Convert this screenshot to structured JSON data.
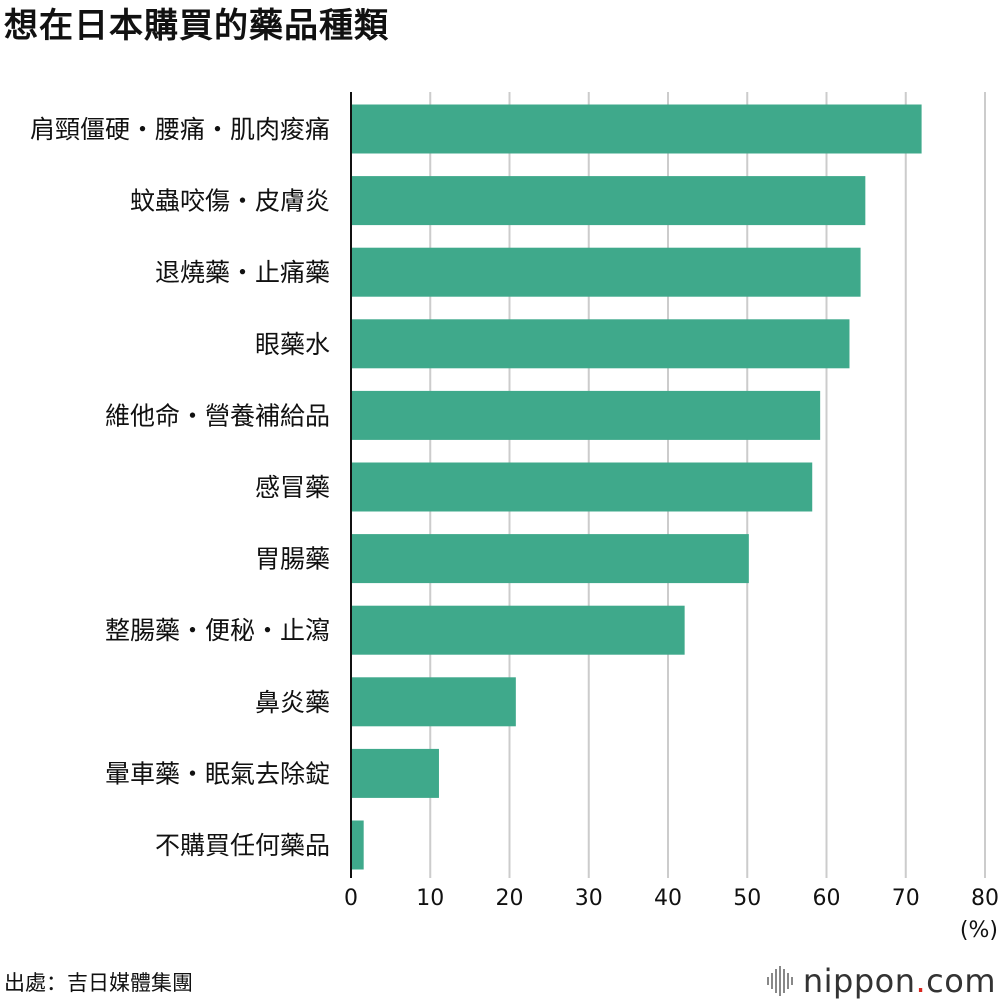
{
  "title": "想在日本購買的藥品種類",
  "source": "出處：吉日媒體集團",
  "brand": {
    "name_part1": "nippon",
    "dot": ".",
    "name_part2": "com",
    "accent_color": "#d7261e",
    "mark_icon": "sound-wave-icon"
  },
  "chart_data": {
    "type": "bar",
    "orientation": "horizontal",
    "title": "想在日本購買的藥品種類",
    "xlabel": "",
    "ylabel": "",
    "unit": "(%)",
    "categories": [
      "肩頸僵硬・腰痛・肌肉痠痛",
      "蚊蟲咬傷・皮膚炎",
      "退燒藥・止痛藥",
      "眼藥水",
      "維他命・營養補給品",
      "感冒藥",
      "胃腸藥",
      "整腸藥・便秘・止瀉",
      "鼻炎藥",
      "暈車藥・眠氣去除錠",
      "不購買任何藥品"
    ],
    "values": [
      72.0,
      64.9,
      64.3,
      62.9,
      59.2,
      58.2,
      50.2,
      42.1,
      20.8,
      11.1,
      1.6
    ],
    "xlim": [
      0,
      80
    ],
    "xticks": [
      0,
      10,
      20,
      30,
      40,
      50,
      60,
      70,
      80
    ],
    "grid": true,
    "bar_color": "#3fa98b",
    "grid_color": "#cccccc",
    "axis_color": "#111111"
  }
}
